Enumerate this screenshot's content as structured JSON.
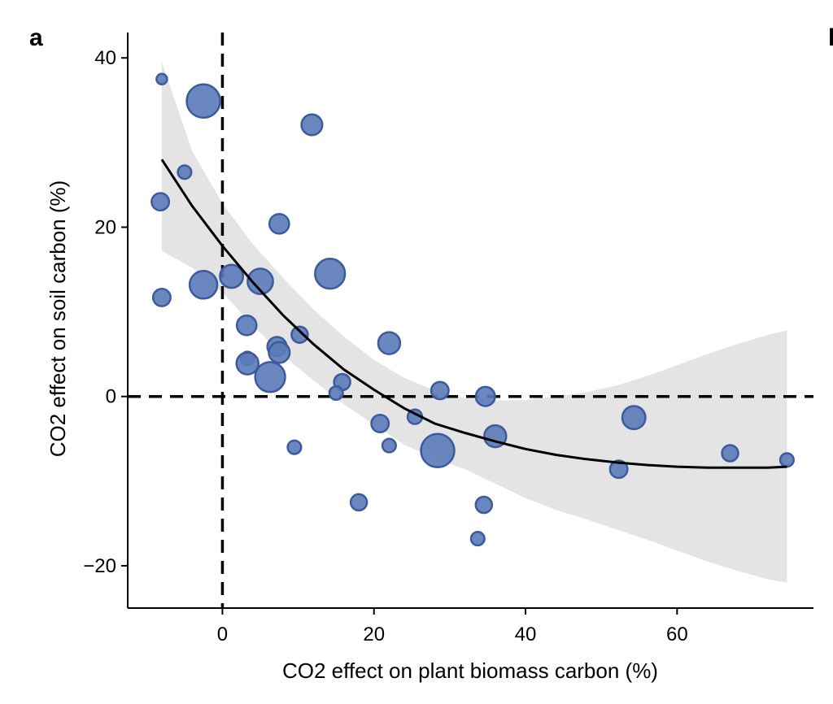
{
  "panel_label": "a",
  "next_panel_label": "b",
  "chart_data": {
    "type": "scatter",
    "title": "",
    "xlabel": "CO2 effect on plant biomass carbon (%)",
    "ylabel": "CO2 effect on soil carbon (%)",
    "xlim": [
      -12.5,
      78
    ],
    "ylim": [
      -25,
      43
    ],
    "xticks": [
      0,
      20,
      40,
      60
    ],
    "yticks": [
      -20,
      0,
      20,
      40
    ],
    "xtick_labels": [
      "0",
      "20",
      "40",
      "60"
    ],
    "ytick_labels": [
      "−20",
      "0",
      "20",
      "40"
    ],
    "reference_lines": [
      {
        "axis": "x",
        "value": 0,
        "style": "dashed"
      },
      {
        "axis": "y",
        "value": 0,
        "style": "dashed"
      }
    ],
    "point_color": "#5b7ab8",
    "point_edge_color": "#3c5a9c",
    "line_color": "#000000",
    "band_color": "#e4e4e4",
    "points": [
      {
        "x": -8.0,
        "y": 37.5,
        "size": 1
      },
      {
        "x": -2.5,
        "y": 34.9,
        "size": 5
      },
      {
        "x": -5.0,
        "y": 26.5,
        "size": 1.5
      },
      {
        "x": -8.2,
        "y": 23.0,
        "size": 2.2
      },
      {
        "x": -8.0,
        "y": 11.7,
        "size": 2.2
      },
      {
        "x": -2.5,
        "y": 13.2,
        "size": 4
      },
      {
        "x": 1.2,
        "y": 14.2,
        "size": 3.2
      },
      {
        "x": 5.0,
        "y": 13.6,
        "size": 3.6
      },
      {
        "x": 11.8,
        "y": 32.1,
        "size": 2.8
      },
      {
        "x": 7.5,
        "y": 20.4,
        "size": 2.6
      },
      {
        "x": 14.2,
        "y": 14.5,
        "size": 4.4
      },
      {
        "x": 3.2,
        "y": 8.4,
        "size": 2.6
      },
      {
        "x": 3.3,
        "y": 4.5,
        "size": 1.5
      },
      {
        "x": 3.3,
        "y": 3.9,
        "size": 3
      },
      {
        "x": 7.2,
        "y": 5.9,
        "size": 2.5
      },
      {
        "x": 7.5,
        "y": 5.2,
        "size": 2.8
      },
      {
        "x": 6.3,
        "y": 2.3,
        "size": 4.4
      },
      {
        "x": 10.2,
        "y": 7.3,
        "size": 2
      },
      {
        "x": 9.5,
        "y": -6.0,
        "size": 1.5
      },
      {
        "x": 15.8,
        "y": 1.7,
        "size": 2
      },
      {
        "x": 15.0,
        "y": 0.4,
        "size": 1.5
      },
      {
        "x": 22.0,
        "y": 6.3,
        "size": 3
      },
      {
        "x": 20.8,
        "y": -3.2,
        "size": 2.2
      },
      {
        "x": 22.0,
        "y": -5.8,
        "size": 1.5
      },
      {
        "x": 25.4,
        "y": -2.4,
        "size": 1.7
      },
      {
        "x": 28.7,
        "y": 0.7,
        "size": 2.2
      },
      {
        "x": 28.4,
        "y": -6.4,
        "size": 5
      },
      {
        "x": 34.7,
        "y": 0.0,
        "size": 2.5
      },
      {
        "x": 36.0,
        "y": -4.7,
        "size": 3
      },
      {
        "x": 18.0,
        "y": -12.5,
        "size": 2
      },
      {
        "x": 34.5,
        "y": -12.8,
        "size": 2
      },
      {
        "x": 33.7,
        "y": -16.8,
        "size": 1.5
      },
      {
        "x": 54.3,
        "y": -2.5,
        "size": 3.2
      },
      {
        "x": 52.3,
        "y": -8.6,
        "size": 2.2
      },
      {
        "x": 67.0,
        "y": -6.7,
        "size": 2
      },
      {
        "x": 74.5,
        "y": -7.5,
        "size": 1.5
      }
    ],
    "fit_line": {
      "x": [
        -8,
        -4,
        0,
        4,
        8,
        12,
        16,
        20,
        24,
        28,
        32,
        36,
        40,
        44,
        48,
        52,
        56,
        60,
        64,
        68,
        72,
        74.5
      ],
      "y": [
        28.0,
        22.5,
        17.8,
        13.5,
        9.6,
        6.2,
        3.2,
        0.8,
        -1.4,
        -3.2,
        -4.3,
        -5.3,
        -6.2,
        -6.9,
        -7.4,
        -7.8,
        -8.1,
        -8.3,
        -8.4,
        -8.4,
        -8.4,
        -8.3
      ]
    },
    "confidence_band": {
      "x": [
        -8,
        -4,
        0,
        4,
        8,
        12,
        16,
        20,
        24,
        28,
        32,
        36,
        40,
        44,
        48,
        52,
        56,
        60,
        64,
        68,
        72,
        74.5
      ],
      "upper": [
        39.5,
        29.0,
        22.8,
        18.0,
        14.0,
        10.3,
        7.1,
        4.3,
        2.2,
        0.7,
        -0.2,
        -0.5,
        -0.4,
        0.0,
        0.5,
        1.3,
        2.4,
        3.7,
        5.0,
        6.2,
        7.3,
        7.8
      ],
      "lower": [
        17.2,
        15.2,
        12.3,
        8.4,
        4.9,
        1.9,
        -0.9,
        -3.3,
        -5.7,
        -7.3,
        -8.6,
        -10.3,
        -12.0,
        -13.4,
        -14.5,
        -15.7,
        -16.9,
        -18.2,
        -19.5,
        -20.6,
        -21.6,
        -22.0
      ]
    }
  }
}
